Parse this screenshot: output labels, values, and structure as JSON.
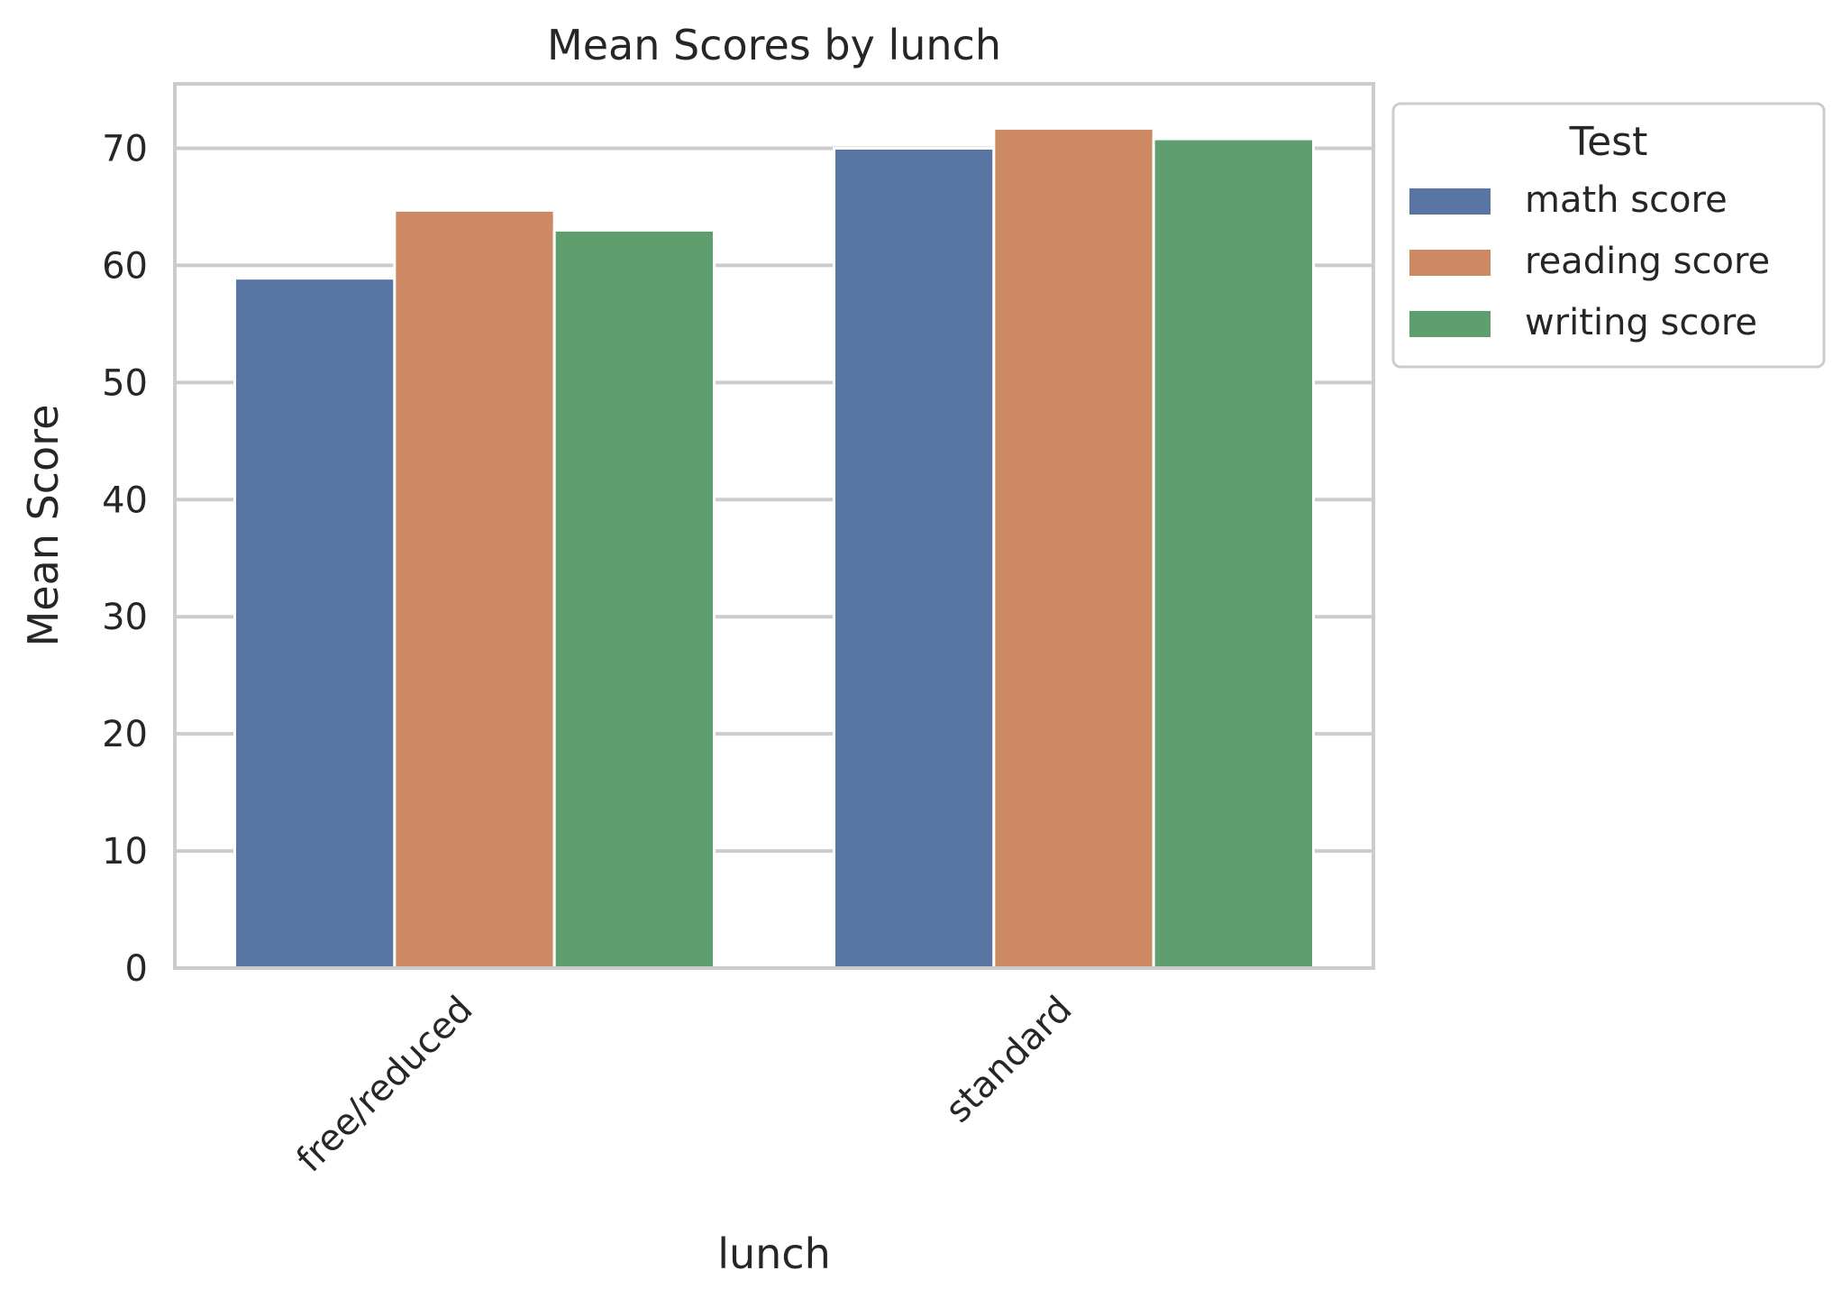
{
  "chart_data": {
    "type": "bar",
    "title": "Mean Scores by lunch",
    "xlabel": "lunch",
    "ylabel": "Mean Score",
    "categories": [
      "free/reduced",
      "standard"
    ],
    "series": [
      {
        "name": "math score",
        "values": [
          58.9,
          70.0
        ],
        "color": "#5875a4"
      },
      {
        "name": "reading score",
        "values": [
          64.7,
          71.7
        ],
        "color": "#cc8963"
      },
      {
        "name": "writing score",
        "values": [
          63.0,
          70.8
        ],
        "color": "#5f9e6e"
      }
    ],
    "ylim": [
      0,
      75.5
    ],
    "yticks": [
      0,
      10,
      20,
      30,
      40,
      50,
      60,
      70
    ],
    "grid": "horizontal",
    "legend": {
      "title": "Test",
      "placement": "outside upper right"
    },
    "xtick_rotation_deg": 45
  }
}
